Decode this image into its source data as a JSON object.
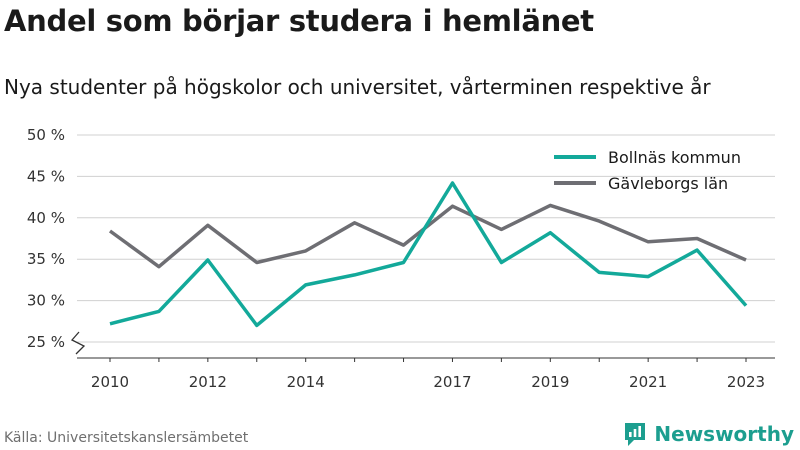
{
  "title": "Andel som börjar studera i hemlänet",
  "subtitle": "Nya studenter på högskolor och universitet, vårterminen respektive år",
  "source": "Källa: Universitetskanslersämbetet",
  "brand": {
    "name": "Newsworthy",
    "color": "#1c9e8f",
    "icon": "newsworthy-logo-icon"
  },
  "chart_data": {
    "type": "line",
    "x": [
      2010,
      2011,
      2012,
      2013,
      2014,
      2015,
      2016,
      2017,
      2018,
      2019,
      2020,
      2021,
      2022,
      2023
    ],
    "x_tick_labels": [
      {
        "x": 2010,
        "label": "2010"
      },
      {
        "x": 2012,
        "label": "2012"
      },
      {
        "x": 2014,
        "label": "2014"
      },
      {
        "x": 2017,
        "label": "2017"
      },
      {
        "x": 2019,
        "label": "2019"
      },
      {
        "x": 2021,
        "label": "2021"
      },
      {
        "x": 2023,
        "label": "2023"
      }
    ],
    "y_ticks": [
      {
        "value": 25,
        "label": "25 %"
      },
      {
        "value": 30,
        "label": "30 %"
      },
      {
        "value": 35,
        "label": "35 %"
      },
      {
        "value": 40,
        "label": "40 %"
      },
      {
        "value": 45,
        "label": "45 %"
      },
      {
        "value": 50,
        "label": "50 %"
      }
    ],
    "ylim": [
      25,
      50
    ],
    "y_axis_break": true,
    "grid": true,
    "legend_position": "top-right",
    "series": [
      {
        "name": "Bollnäs kommun",
        "color": "#13a99a",
        "values": [
          27.2,
          28.7,
          34.9,
          27.0,
          31.9,
          33.1,
          34.6,
          44.2,
          34.6,
          38.2,
          33.4,
          32.9,
          36.1,
          29.4
        ]
      },
      {
        "name": "Gävleborgs län",
        "color": "#6e6e73",
        "values": [
          38.4,
          34.1,
          39.1,
          34.6,
          36.0,
          39.4,
          36.7,
          41.4,
          38.6,
          41.5,
          39.6,
          37.1,
          37.5,
          34.9
        ]
      }
    ]
  }
}
